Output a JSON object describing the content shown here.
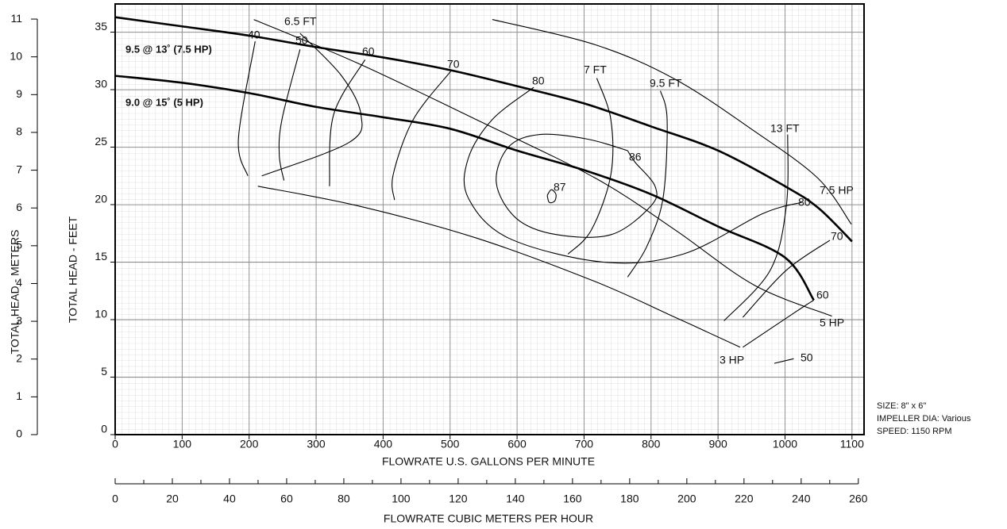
{
  "chart_data": {
    "type": "line",
    "color": "#000000",
    "grid": true,
    "xlabel": "FLOWRATE U.S. GALLONS PER MINUTE",
    "ylabel": "TOTAL HEAD - FEET",
    "y2label": "TOTAL HEAD - METERS",
    "x2label": "FLOWRATE CUBIC METERS PER HOUR",
    "xlim": [
      0,
      1118
    ],
    "xticks": [
      0,
      100,
      200,
      300,
      400,
      500,
      600,
      700,
      800,
      900,
      1000,
      1100
    ],
    "ylim": [
      0,
      37.45
    ],
    "yticks": [
      0,
      5,
      10,
      15,
      20,
      25,
      30,
      35
    ],
    "y2lim": [
      0,
      11.4
    ],
    "y2ticks": [
      0,
      1,
      2,
      3,
      4,
      5,
      6,
      7,
      8,
      9,
      10,
      11
    ],
    "x2lim": [
      0,
      262
    ],
    "x2ticks": [
      0,
      20,
      40,
      60,
      80,
      100,
      120,
      140,
      160,
      180,
      200,
      220,
      240,
      260
    ],
    "notes": [
      "SIZE: 8\" x 6\"",
      "IMPELLER DIA: Various",
      "SPEED: 1150 RPM"
    ],
    "series": [
      {
        "name": "9.5 @ 13˚ (7.5 HP)",
        "x": [
          0,
          100,
          200,
          300,
          400,
          500,
          600,
          700,
          800,
          900,
          1000,
          1050,
          1100
        ],
        "values": [
          36.3,
          35.5,
          34.7,
          33.7,
          32.8,
          31.7,
          30.3,
          28.8,
          26.8,
          24.7,
          21.6,
          19.7,
          16.8
        ]
      },
      {
        "name": "9.0 @ 15˚ (5 HP)",
        "x": [
          0,
          100,
          200,
          300,
          400,
          500,
          600,
          700,
          800,
          900,
          1000,
          1043
        ],
        "values": [
          31.2,
          30.6,
          29.7,
          28.5,
          27.6,
          26.6,
          24.7,
          23.0,
          20.9,
          18.1,
          15.4,
          11.7
        ]
      },
      {
        "name": "7.5 HP",
        "x": [
          563,
          717,
          836,
          954,
          1049,
          1099
        ],
        "values": [
          36.1,
          33.9,
          30.9,
          26.4,
          22.3,
          18.3
        ]
      },
      {
        "name": "5 HP",
        "x": [
          207,
          362,
          539,
          717,
          836,
          954,
          1070
        ],
        "values": [
          36.1,
          32.3,
          27.4,
          22.3,
          17.8,
          13.0,
          10.3
        ]
      },
      {
        "name": "3 HP",
        "x": [
          213,
          362,
          539,
          717,
          836,
          933
        ],
        "values": [
          21.6,
          19.9,
          17.1,
          13.3,
          10.2,
          7.6
        ]
      },
      {
        "name": "6.5 FT",
        "x": [
          276,
          338,
          367,
          349,
          219
        ],
        "values": [
          34.9,
          31.2,
          27.8,
          25.4,
          22.5
        ]
      },
      {
        "name": "7 FT",
        "x": [
          719,
          740,
          740,
          711,
          676
        ],
        "values": [
          31.0,
          27.4,
          22.6,
          17.8,
          15.7
        ]
      },
      {
        "name": "9.5 FT",
        "x": [
          814,
          824,
          818,
          794,
          765
        ],
        "values": [
          29.9,
          27.4,
          20.6,
          16.4,
          13.7
        ]
      },
      {
        "name": "13 FT",
        "x": [
          1004,
          1002,
          978,
          909
        ],
        "values": [
          26.1,
          19.9,
          14.3,
          9.9
        ]
      },
      {
        "name": "40",
        "x": [
          209,
          184,
          198
        ],
        "values": [
          34.2,
          25.7,
          22.5
        ]
      },
      {
        "name": "50",
        "x": [
          276,
          249,
          245,
          252
        ],
        "values": [
          33.5,
          27.4,
          24.3,
          22.1
        ]
      },
      {
        "name": "60",
        "x": [
          373,
          326,
          320
        ],
        "values": [
          32.6,
          27.8,
          21.6
        ]
      },
      {
        "name": "70",
        "x": [
          501,
          445,
          415,
          417
        ],
        "values": [
          31.6,
          27.4,
          22.6,
          20.4
        ]
      },
      {
        "name": "80",
        "x": [
          625,
          563,
          527,
          527,
          587,
          729,
          848,
          966,
          1025
        ],
        "values": [
          30.2,
          27.4,
          24.0,
          20.6,
          17.1,
          15.0,
          15.7,
          19.2,
          20.2
        ]
      },
      {
        "name": "86",
        "x": [
          765,
          705,
          634,
          587,
          569,
          599,
          658,
          741,
          800,
          806,
          776,
          765
        ],
        "values": [
          24.7,
          25.7,
          26.1,
          25.0,
          21.9,
          18.8,
          17.4,
          17.4,
          19.9,
          21.6,
          23.7,
          24.7
        ]
      },
      {
        "name": "87",
        "x": [
          645,
          651,
          658,
          656,
          648,
          645
        ],
        "values": [
          20.8,
          21.3,
          20.9,
          20.3,
          20.2,
          20.8
        ]
      },
      {
        "name": "70",
        "x": [
          1067,
          1002,
          937
        ],
        "values": [
          16.9,
          14.3,
          10.2
        ]
      },
      {
        "name": "60",
        "x": [
          1043,
          1014,
          937
        ],
        "values": [
          11.7,
          10.6,
          7.6
        ]
      },
      {
        "name": "50",
        "x": [
          984,
          1013
        ],
        "values": [
          6.2,
          6.6
        ]
      }
    ]
  }
}
